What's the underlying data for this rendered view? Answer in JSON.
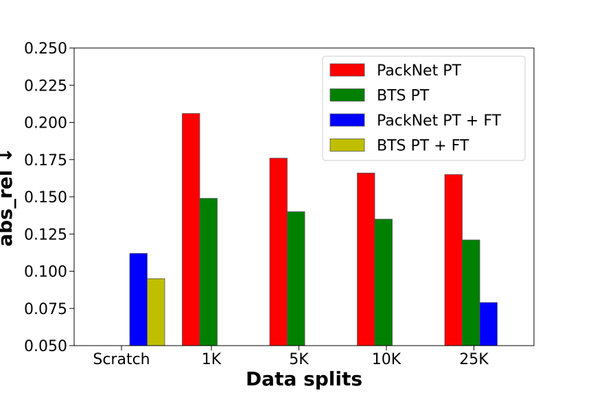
{
  "chart_data": {
    "type": "bar",
    "title": "",
    "xlabel": "Data splits",
    "ylabel": "abs_rel ↓",
    "categories": [
      "Scratch",
      "1K",
      "5K",
      "10K",
      "25K"
    ],
    "ylim": [
      0.05,
      0.25
    ],
    "yticks": [
      "0.050",
      "0.075",
      "0.100",
      "0.125",
      "0.150",
      "0.175",
      "0.200",
      "0.225",
      "0.250"
    ],
    "grid": false,
    "legend_position": "top-right",
    "series": [
      {
        "name": "PackNet PT",
        "color": "#ff0000",
        "values": [
          null,
          0.206,
          0.176,
          0.166,
          0.165
        ]
      },
      {
        "name": "BTS PT",
        "color": "#008000",
        "values": [
          null,
          0.149,
          0.14,
          0.135,
          0.121
        ]
      },
      {
        "name": "PackNet PT + FT",
        "color": "#0000ff",
        "values": [
          0.112,
          null,
          null,
          null,
          0.079
        ]
      },
      {
        "name": "BTS PT + FT",
        "color": "#bfbf00",
        "values": [
          0.095,
          null,
          null,
          null,
          null
        ]
      }
    ]
  }
}
